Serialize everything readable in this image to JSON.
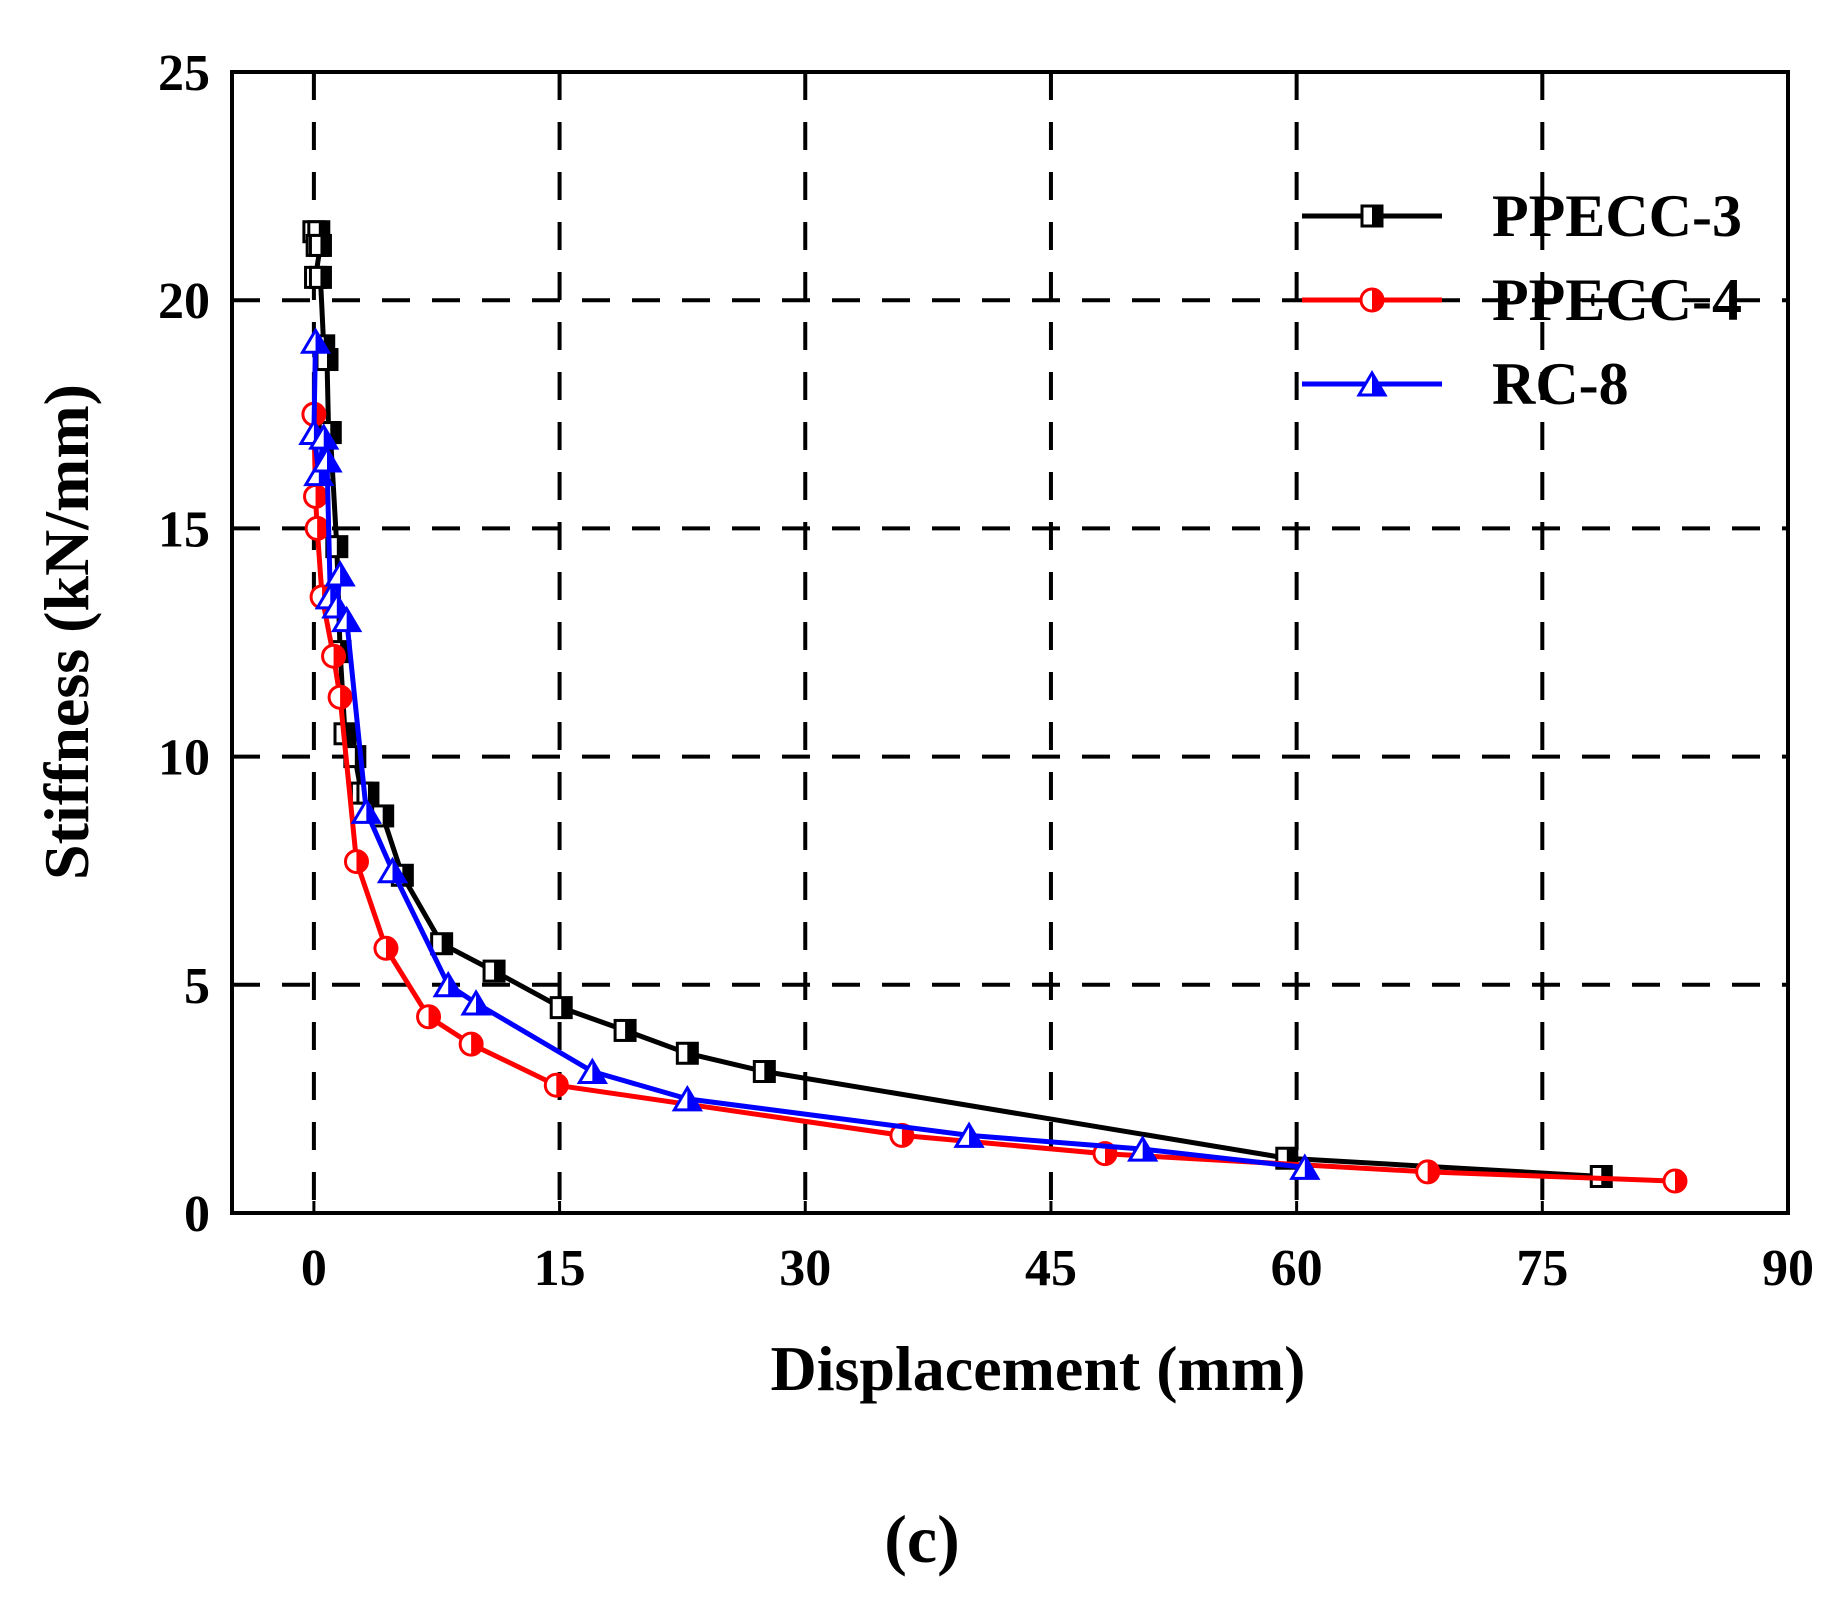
{
  "chart_data": {
    "type": "line",
    "title": "",
    "xlabel": "Displacement (mm)",
    "ylabel": "Stiffness (kN/mm)",
    "xlim": [
      -5,
      90
    ],
    "ylim": [
      0,
      25
    ],
    "x_ticks": [
      0,
      15,
      30,
      45,
      60,
      75,
      90
    ],
    "y_ticks": [
      0,
      5,
      10,
      15,
      20,
      25
    ],
    "x_tick_labels": [
      "0",
      "15",
      "30",
      "45",
      "60",
      "75",
      "90"
    ],
    "y_tick_labels": [
      "0",
      "5",
      "10",
      "15",
      "20",
      "25"
    ],
    "grid": true,
    "grid_x": [
      0,
      15,
      30,
      45,
      60,
      75
    ],
    "grid_y": [
      5,
      10,
      15,
      20
    ],
    "legend_position": "top-right",
    "caption": "(c)",
    "series": [
      {
        "name": "PPECC-3",
        "color": "#000000",
        "marker": "square-half",
        "x": [
          0,
          0.3,
          0.2,
          0.4,
          0.1,
          0.4,
          0.6,
          0.8,
          0.9,
          1.0,
          1.4,
          1.6,
          1.9,
          2.5,
          2.9,
          3.3,
          4.2,
          5.4,
          7.8,
          11.0,
          15.1,
          19.0,
          22.8,
          27.5,
          59.4,
          78.6
        ],
        "y": [
          21.5,
          21.5,
          21.2,
          21.2,
          20.5,
          20.5,
          19.0,
          18.7,
          17.1,
          17.1,
          14.6,
          12.3,
          10.5,
          10.0,
          9.2,
          9.2,
          8.7,
          7.4,
          5.9,
          5.3,
          4.5,
          4.0,
          3.5,
          3.1,
          1.2,
          0.8
        ]
      },
      {
        "name": "PPECC-4",
        "color": "#ff0000",
        "marker": "circle-half",
        "x": [
          0.0,
          0.1,
          0.2,
          0.5,
          1.2,
          1.6,
          2.6,
          4.4,
          7.0,
          9.6,
          14.8,
          35.9,
          48.3,
          68.0,
          83.1
        ],
        "y": [
          17.5,
          15.7,
          15.0,
          13.5,
          12.2,
          11.3,
          7.7,
          5.8,
          4.3,
          3.7,
          2.8,
          1.7,
          1.3,
          0.9,
          0.7
        ]
      },
      {
        "name": "RC-8",
        "color": "#0000ff",
        "marker": "triangle-half",
        "x": [
          0.1,
          0.0,
          0.3,
          0.6,
          0.8,
          1.0,
          1.6,
          1.4,
          2.0,
          3.2,
          4.8,
          8.2,
          9.9,
          17.0,
          22.8,
          40.0,
          50.6,
          60.5
        ],
        "y": [
          19.1,
          17.1,
          16.2,
          17.0,
          16.5,
          13.5,
          14.0,
          13.3,
          13.0,
          8.8,
          7.5,
          5.0,
          4.6,
          3.1,
          2.5,
          1.7,
          1.4,
          1.0
        ]
      }
    ]
  }
}
